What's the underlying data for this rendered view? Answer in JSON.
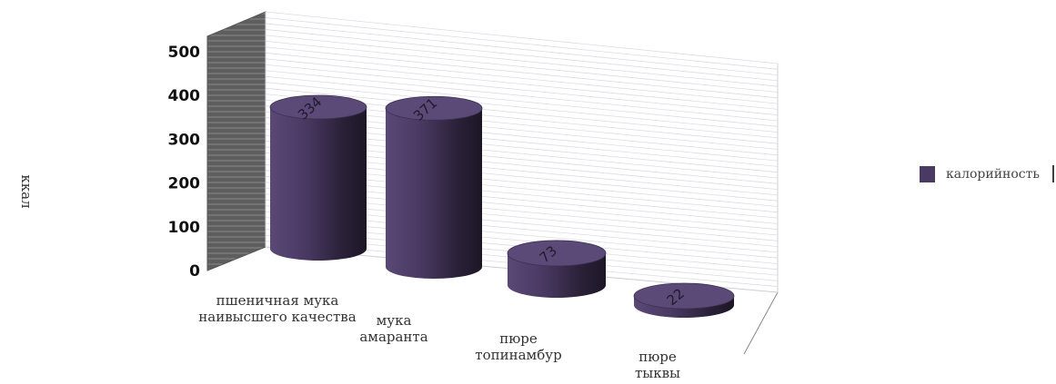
{
  "chart_data": {
    "type": "bar",
    "style": "3d-cylinder",
    "categories": [
      "пшеничная мука наивысшего качества",
      "мука амаранта",
      "пюре топинамбур",
      "пюре тыквы"
    ],
    "category_lines": [
      [
        "пшеничная мука",
        "наивысшего качества"
      ],
      [
        "мука",
        "амаранта"
      ],
      [
        "пюре",
        "топинамбур"
      ],
      [
        "пюре",
        "тыквы"
      ]
    ],
    "series": [
      {
        "name": "калорийность",
        "values": [
          334,
          371,
          73,
          22
        ]
      }
    ],
    "data_labels": [
      "334",
      "371",
      "73",
      "22"
    ],
    "ylabel": "ккал",
    "ylim": [
      0,
      500
    ],
    "yticks": [
      "0",
      "100",
      "200",
      "300",
      "400",
      "500"
    ],
    "grid": true,
    "legend_position": "right",
    "colors": {
      "series": "#4a3a63",
      "series_dark": "#231b30",
      "series_top": "#5b4a77",
      "back_wall_grid": "#d8d8e0",
      "side_wall": "#6a6a6a"
    }
  }
}
